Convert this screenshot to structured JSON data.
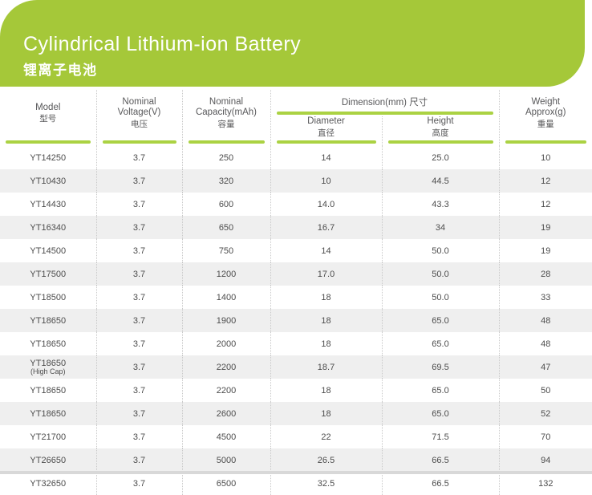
{
  "banner": {
    "title": "Cylindrical Lithium-ion Battery",
    "subtitle": "锂离子电池",
    "bg_color": "#a5c839"
  },
  "colors": {
    "accent_green": "#a5c839",
    "underline_green": "#abd243",
    "row_stripe": "#efefef",
    "bottom_bar": "#d8d8d8",
    "text": "#4c4c4c"
  },
  "table": {
    "headers": {
      "model": {
        "en": "Model",
        "zh": "型号"
      },
      "voltage": {
        "en": "Nominal Voltage(V)",
        "zh": "电压"
      },
      "capacity": {
        "en": "Nominal Capacity(mAh)",
        "zh": "容量"
      },
      "dimension": {
        "en": "Dimension(mm)",
        "zh": "尺寸"
      },
      "diameter": {
        "en": "Diameter",
        "zh": "直径"
      },
      "height": {
        "en": "Height",
        "zh": "高度"
      },
      "weight": {
        "en": "Weight Approx(g)",
        "zh": "重量"
      }
    },
    "rows": [
      {
        "model": "YT14250",
        "note": "",
        "voltage": "3.7",
        "capacity": "250",
        "diameter": "14",
        "height": "25.0",
        "weight": "10"
      },
      {
        "model": "YT10430",
        "note": "",
        "voltage": "3.7",
        "capacity": "320",
        "diameter": "10",
        "height": "44.5",
        "weight": "12"
      },
      {
        "model": "YT14430",
        "note": "",
        "voltage": "3.7",
        "capacity": "600",
        "diameter": "14.0",
        "height": "43.3",
        "weight": "12"
      },
      {
        "model": "YT16340",
        "note": "",
        "voltage": "3.7",
        "capacity": "650",
        "diameter": "16.7",
        "height": "34",
        "weight": "19"
      },
      {
        "model": "YT14500",
        "note": "",
        "voltage": "3.7",
        "capacity": "750",
        "diameter": "14",
        "height": "50.0",
        "weight": "19"
      },
      {
        "model": "YT17500",
        "note": "",
        "voltage": "3.7",
        "capacity": "1200",
        "diameter": "17.0",
        "height": "50.0",
        "weight": "28"
      },
      {
        "model": "YT18500",
        "note": "",
        "voltage": "3.7",
        "capacity": "1400",
        "diameter": "18",
        "height": "50.0",
        "weight": "33"
      },
      {
        "model": "YT18650",
        "note": "",
        "voltage": "3.7",
        "capacity": "1900",
        "diameter": "18",
        "height": "65.0",
        "weight": "48"
      },
      {
        "model": "YT18650",
        "note": "",
        "voltage": "3.7",
        "capacity": "2000",
        "diameter": "18",
        "height": "65.0",
        "weight": "48"
      },
      {
        "model": "YT18650",
        "note": "(High Cap)",
        "voltage": "3.7",
        "capacity": "2200",
        "diameter": "18.7",
        "height": "69.5",
        "weight": "47"
      },
      {
        "model": "YT18650",
        "note": "",
        "voltage": "3.7",
        "capacity": "2200",
        "diameter": "18",
        "height": "65.0",
        "weight": "50"
      },
      {
        "model": "YT18650",
        "note": "",
        "voltage": "3.7",
        "capacity": "2600",
        "diameter": "18",
        "height": "65.0",
        "weight": "52"
      },
      {
        "model": "YT21700",
        "note": "",
        "voltage": "3.7",
        "capacity": "4500",
        "diameter": "22",
        "height": "71.5",
        "weight": "70"
      },
      {
        "model": "YT26650",
        "note": "",
        "voltage": "3.7",
        "capacity": "5000",
        "diameter": "26.5",
        "height": "66.5",
        "weight": "94"
      },
      {
        "model": "YT32650",
        "note": "",
        "voltage": "3.7",
        "capacity": "6500",
        "diameter": "32.5",
        "height": "66.5",
        "weight": "132"
      }
    ]
  }
}
